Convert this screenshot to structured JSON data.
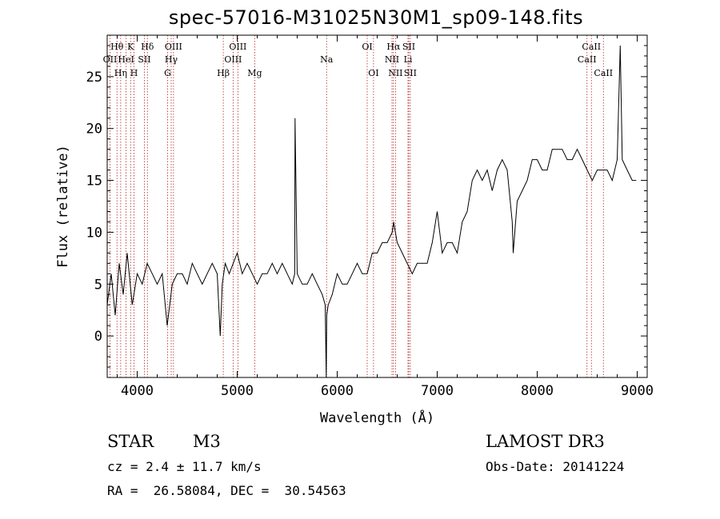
{
  "chart_data": {
    "type": "line",
    "title": "spec-57016-M31025N30M1_sp09-148.fits",
    "xlabel": "Wavelength (Å)",
    "ylabel": "Flux (relative)",
    "xlim": [
      3700,
      9100
    ],
    "ylim": [
      -4,
      29
    ],
    "xticks": [
      4000,
      5000,
      6000,
      7000,
      8000,
      9000
    ],
    "yticks": [
      0,
      5,
      10,
      15,
      20,
      25
    ],
    "series": [
      {
        "name": "flux",
        "x": [
          3700,
          3740,
          3780,
          3820,
          3860,
          3900,
          3950,
          4000,
          4050,
          4100,
          4150,
          4200,
          4250,
          4300,
          4350,
          4400,
          4450,
          4500,
          4550,
          4600,
          4650,
          4700,
          4750,
          4800,
          4830,
          4850,
          4880,
          4920,
          4960,
          5000,
          5050,
          5100,
          5150,
          5200,
          5250,
          5300,
          5350,
          5400,
          5450,
          5500,
          5550,
          5575,
          5578,
          5600,
          5650,
          5700,
          5750,
          5800,
          5850,
          5880,
          5890,
          5895,
          5910,
          5950,
          6000,
          6050,
          6100,
          6150,
          6200,
          6250,
          6300,
          6350,
          6400,
          6450,
          6500,
          6550,
          6564,
          6600,
          6650,
          6700,
          6750,
          6800,
          6850,
          6900,
          6950,
          7000,
          7050,
          7100,
          7150,
          7200,
          7250,
          7300,
          7350,
          7400,
          7450,
          7500,
          7550,
          7600,
          7650,
          7700,
          7750,
          7760,
          7800,
          7850,
          7900,
          7950,
          8000,
          8050,
          8100,
          8150,
          8200,
          8250,
          8300,
          8350,
          8400,
          8450,
          8500,
          8550,
          8600,
          8650,
          8700,
          8750,
          8800,
          8830,
          8850,
          8900,
          8950,
          8990
        ],
        "y": [
          3,
          6,
          2,
          7,
          4,
          8,
          3,
          6,
          5,
          7,
          6,
          5,
          6,
          1,
          5,
          6,
          6,
          5,
          7,
          6,
          5,
          6,
          7,
          6,
          0,
          5,
          7,
          6,
          7,
          8,
          6,
          7,
          6,
          5,
          6,
          6,
          7,
          6,
          7,
          6,
          5,
          6,
          21,
          6,
          5,
          5,
          6,
          5,
          4,
          3,
          -4,
          2,
          3,
          4,
          6,
          5,
          5,
          6,
          7,
          6,
          6,
          8,
          8,
          9,
          9,
          10,
          11,
          9,
          8,
          7,
          6,
          7,
          7,
          7,
          9,
          12,
          8,
          9,
          9,
          8,
          11,
          12,
          15,
          16,
          15,
          16,
          14,
          16,
          17,
          16,
          11,
          8,
          13,
          14,
          15,
          17,
          17,
          16,
          16,
          18,
          18,
          18,
          17,
          17,
          18,
          17,
          16,
          15,
          16,
          16,
          16,
          15,
          17,
          28,
          17,
          16,
          15,
          15
        ]
      }
    ],
    "lines": [
      {
        "label": "Hθ",
        "wave": 3798,
        "row": 0
      },
      {
        "label": "OII",
        "wave": 3728,
        "row": 1
      },
      {
        "label": "Hη",
        "wave": 3835,
        "row": 2
      },
      {
        "label": "HeI",
        "wave": 3889,
        "row": 1
      },
      {
        "label": "K",
        "wave": 3934,
        "row": 0
      },
      {
        "label": "H",
        "wave": 3968,
        "row": 2
      },
      {
        "label": "SII",
        "wave": 4072,
        "row": 1
      },
      {
        "label": "Hδ",
        "wave": 4102,
        "row": 0
      },
      {
        "label": "G",
        "wave": 4304,
        "row": 2
      },
      {
        "label": "Hγ",
        "wave": 4340,
        "row": 1
      },
      {
        "label": "OIII",
        "wave": 4363,
        "row": 0
      },
      {
        "label": "Hβ",
        "wave": 4861,
        "row": 2
      },
      {
        "label": "OIII",
        "wave": 4959,
        "row": 1
      },
      {
        "label": "OIII",
        "wave": 5007,
        "row": 0
      },
      {
        "label": "Mg",
        "wave": 5175,
        "row": 2
      },
      {
        "label": "Na",
        "wave": 5894,
        "row": 1
      },
      {
        "label": "OI",
        "wave": 6300,
        "row": 0
      },
      {
        "label": "OI",
        "wave": 6363,
        "row": 2
      },
      {
        "label": "NII",
        "wave": 6548,
        "row": 1
      },
      {
        "label": "Hα",
        "wave": 6563,
        "row": 0
      },
      {
        "label": "NII",
        "wave": 6583,
        "row": 2
      },
      {
        "label": "Li",
        "wave": 6708,
        "row": 1
      },
      {
        "label": "SII",
        "wave": 6716,
        "row": 0
      },
      {
        "label": "SII",
        "wave": 6731,
        "row": 2
      },
      {
        "label": "CaII",
        "wave": 8498,
        "row": 1
      },
      {
        "label": "CaII",
        "wave": 8542,
        "row": 0
      },
      {
        "label": "CaII",
        "wave": 8662,
        "row": 2
      }
    ]
  },
  "info": {
    "object_class": "STAR",
    "subclass": "M3",
    "survey": "LAMOST DR3",
    "cz": "cz = 2.4 ± 11.7 km/s",
    "obs_date": "Obs-Date: 20141224",
    "radec": "RA =  26.58084, DEC =  30.54563"
  },
  "colors": {
    "axis": "#000000",
    "spectrum": "#000000",
    "line_marker": "#b22222",
    "background": "#ffffff"
  }
}
